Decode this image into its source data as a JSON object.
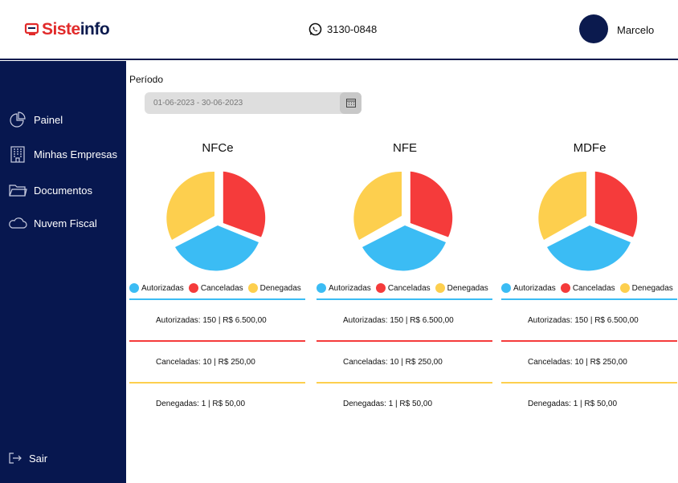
{
  "header": {
    "logo_text_a": "Siste",
    "logo_text_b": "info",
    "phone": "3130-0848",
    "user_name": "Marcelo"
  },
  "sidebar": {
    "items": [
      {
        "label": "Painel",
        "icon": "pie-chart-icon"
      },
      {
        "label": "Minhas Empresas",
        "icon": "building-icon"
      },
      {
        "label": "Documentos",
        "icon": "folder-icon"
      },
      {
        "label": "Nuvem Fiscal",
        "icon": "cloud-icon"
      }
    ],
    "logout_label": "Sair"
  },
  "filter": {
    "label": "Período",
    "date_range": "01-06-2023 - 30-06-2023"
  },
  "colors": {
    "autorizadas": "#3bbcf4",
    "canceladas": "#f53b3b",
    "denegadas": "#fdcf4e",
    "sidebar": "#07174f"
  },
  "legend": {
    "autorizadas": "Autorizadas",
    "canceladas": "Canceladas",
    "denegadas": "Denegadas"
  },
  "panels": [
    {
      "title": "NFCe",
      "autorizadas": "Autorizadas: 150 | R$ 6.500,00",
      "canceladas": "Canceladas: 10 | R$ 250,00",
      "denegadas": "Denegadas: 1 | R$ 50,00"
    },
    {
      "title": "NFE",
      "autorizadas": "Autorizadas: 150 | R$ 6.500,00",
      "canceladas": "Canceladas: 10 | R$ 250,00",
      "denegadas": "Denegadas: 1 | R$ 50,00"
    },
    {
      "title": "MDFe",
      "autorizadas": "Autorizadas: 150 | R$ 6.500,00",
      "canceladas": "Canceladas: 10 | R$ 250,00",
      "denegadas": "Denegadas: 1 | R$ 50,00"
    }
  ]
}
